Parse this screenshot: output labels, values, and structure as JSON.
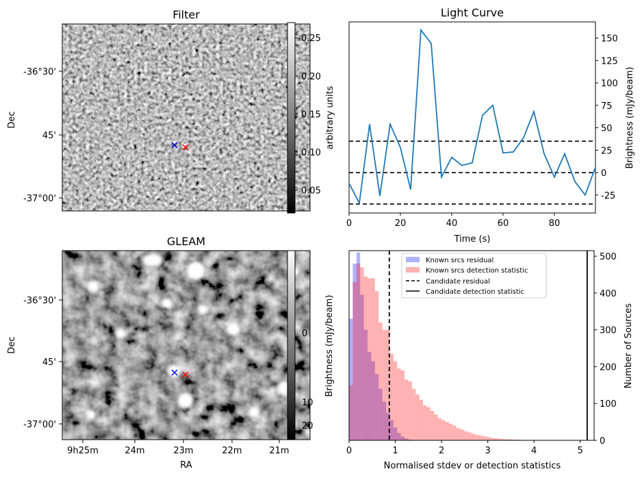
{
  "chart_data": [
    {
      "type": "heatmap",
      "title": "Filter",
      "xlabel": "",
      "ylabel": "Dec",
      "y_ticks": [
        "-36°30'",
        "45'",
        "-37°00'"
      ],
      "colorbar": {
        "label": "arbitrary units",
        "range": [
          0.02,
          0.27
        ],
        "ticks": [
          "0.05",
          "0.10",
          "0.15",
          "0.20",
          "0.25"
        ],
        "tick_values": [
          0.05,
          0.1,
          0.15,
          0.2,
          0.25
        ]
      },
      "markers": [
        {
          "name": "known position",
          "color": "#0000ff",
          "symbol": "x"
        },
        {
          "name": "candidate position",
          "color": "#ff0000",
          "symbol": "x"
        }
      ]
    },
    {
      "type": "line",
      "title": "Light Curve",
      "xlabel": "Time (s)",
      "ylabel": "Brightness (mJy/beam)",
      "xlim": [
        0,
        96
      ],
      "ylim": [
        -45,
        168
      ],
      "x_ticks": [
        0,
        20,
        40,
        60,
        80
      ],
      "y_ticks": [
        -25,
        0,
        25,
        50,
        75,
        100,
        125,
        150
      ],
      "x": [
        0,
        4,
        8,
        12,
        16,
        20,
        24,
        28,
        32,
        36,
        40,
        44,
        48,
        52,
        56,
        60,
        64,
        68,
        72,
        76,
        80,
        84,
        88,
        92,
        96
      ],
      "values": [
        -12,
        -34,
        54,
        -26,
        54,
        28,
        -19,
        159,
        144,
        -5,
        17,
        8,
        11,
        64,
        75,
        22,
        23,
        39,
        68,
        21,
        -5,
        21,
        -10,
        -25,
        6
      ],
      "hlines": [
        35,
        0,
        -35
      ],
      "color": "#1f77b4"
    },
    {
      "type": "heatmap",
      "title": "GLEAM",
      "xlabel": "RA",
      "ylabel": "Dec",
      "x_ticks": [
        "9h25m",
        "24m",
        "23m",
        "22m",
        "21m"
      ],
      "y_ticks": [
        "-36°30'",
        "45'",
        "-37°00'"
      ],
      "colorbar_label": "Brightness (mJy/beam)",
      "colorbar_ticks": [
        "0",
        "10",
        "20"
      ],
      "markers": [
        {
          "name": "known position",
          "color": "#0000ff",
          "symbol": "x"
        },
        {
          "name": "candidate position",
          "color": "#ff0000",
          "symbol": "x"
        }
      ]
    },
    {
      "type": "bar",
      "title": "",
      "xlabel": "Normalised stdev or detection statistics",
      "ylabel": "Number of Sources",
      "xlim": [
        0,
        5.3
      ],
      "ylim": [
        0,
        515
      ],
      "x_ticks": [
        0,
        1,
        2,
        3,
        4,
        5
      ],
      "y_ticks": [
        0,
        100,
        200,
        300,
        400,
        500
      ],
      "bin_width": 0.08,
      "series": [
        {
          "name": "Known srcs residual",
          "color": "#0000ff",
          "alpha": 0.3,
          "start": 0.0,
          "values": [
            330,
            480,
            510,
            395,
            300,
            240,
            215,
            180,
            140,
            105,
            75,
            55,
            35,
            20,
            10,
            5,
            2,
            1
          ]
        },
        {
          "name": "Known srcs detection statistic",
          "color": "#ff0000",
          "alpha": 0.3,
          "start": 0.0,
          "values": [
            150,
            430,
            480,
            470,
            445,
            440,
            440,
            405,
            320,
            300,
            300,
            235,
            215,
            195,
            190,
            165,
            160,
            140,
            125,
            110,
            95,
            90,
            80,
            70,
            60,
            55,
            50,
            45,
            40,
            33,
            30,
            25,
            22,
            18,
            15,
            13,
            11,
            9,
            7,
            6,
            5,
            4,
            3,
            3,
            2,
            2,
            1,
            1,
            1,
            1,
            0,
            1,
            0,
            1,
            0,
            0,
            0,
            0,
            0,
            0,
            0,
            0,
            1
          ]
        }
      ],
      "vlines": [
        {
          "name": "Candidate residual",
          "x": 0.87,
          "style": "dashed"
        },
        {
          "name": "Candidate detection statistic",
          "x": 5.15,
          "style": "solid"
        }
      ],
      "legend_position": "top-center"
    }
  ]
}
